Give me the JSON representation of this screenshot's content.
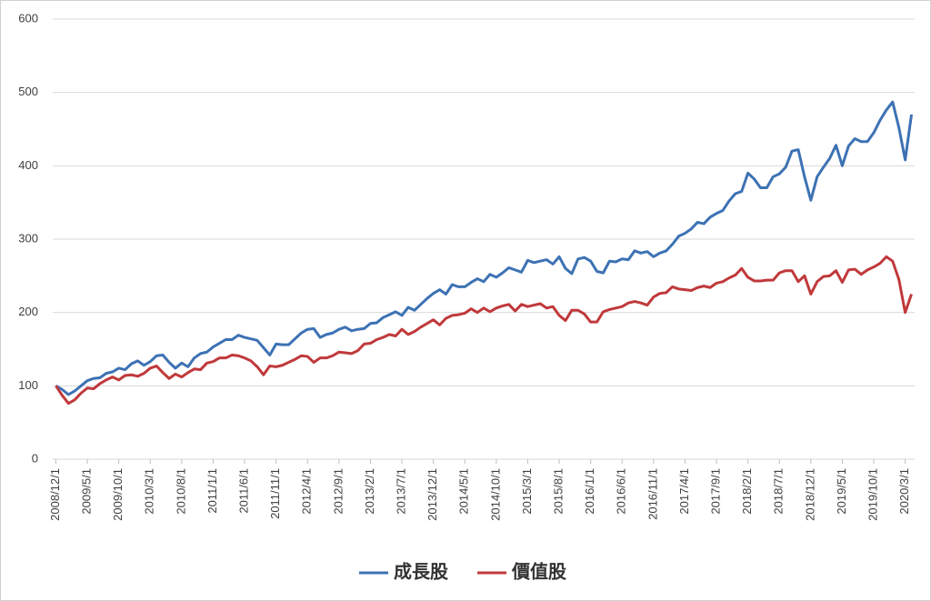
{
  "chart_data": {
    "type": "line",
    "categories": [
      "2008/12/1",
      null,
      null,
      null,
      null,
      "2009/5/1",
      null,
      null,
      null,
      null,
      "2009/10/1",
      null,
      null,
      null,
      null,
      "2010/3/1",
      null,
      null,
      null,
      null,
      "2010/8/1",
      null,
      null,
      null,
      null,
      "2011/1/1",
      null,
      null,
      null,
      null,
      "2011/6/1",
      null,
      null,
      null,
      null,
      "2011/11/1",
      null,
      null,
      null,
      null,
      "2012/4/1",
      null,
      null,
      null,
      null,
      "2012/9/1",
      null,
      null,
      null,
      null,
      "2013/2/1",
      null,
      null,
      null,
      null,
      "2013/7/1",
      null,
      null,
      null,
      null,
      "2013/12/1",
      null,
      null,
      null,
      null,
      "2014/5/1",
      null,
      null,
      null,
      null,
      "2014/10/1",
      null,
      null,
      null,
      null,
      "2015/3/1",
      null,
      null,
      null,
      null,
      "2015/8/1",
      null,
      null,
      null,
      null,
      "2016/1/1",
      null,
      null,
      null,
      null,
      "2016/6/1",
      null,
      null,
      null,
      null,
      "2016/11/1",
      null,
      null,
      null,
      null,
      "2017/4/1",
      null,
      null,
      null,
      null,
      "2017/9/1",
      null,
      null,
      null,
      null,
      "2018/2/1",
      null,
      null,
      null,
      null,
      "2018/7/1",
      null,
      null,
      null,
      null,
      "2018/12/1",
      null,
      null,
      null,
      null,
      "2019/5/1",
      null,
      null,
      null,
      null,
      "2019/10/1",
      null,
      null,
      null,
      null,
      "2020/3/1",
      null
    ],
    "series": [
      {
        "name": "成長股",
        "color": "#3d72b4",
        "values": [
          100,
          95,
          88,
          93,
          100,
          107,
          110,
          111,
          117,
          119,
          124,
          122,
          130,
          134,
          128,
          133,
          141,
          142,
          132,
          124,
          131,
          126,
          138,
          144,
          146,
          153,
          158,
          163,
          163,
          169,
          166,
          164,
          162,
          152,
          142,
          157,
          156,
          156,
          164,
          172,
          177,
          178,
          166,
          170,
          172,
          177,
          180,
          175,
          177,
          178,
          185,
          186,
          193,
          197,
          201,
          196,
          207,
          203,
          211,
          219,
          226,
          231,
          225,
          238,
          235,
          235,
          241,
          246,
          242,
          252,
          248,
          254,
          261,
          258,
          255,
          271,
          268,
          270,
          272,
          266,
          276,
          260,
          253,
          273,
          275,
          270,
          256,
          254,
          270,
          269,
          273,
          272,
          284,
          281,
          283,
          276,
          281,
          284,
          293,
          304,
          308,
          314,
          323,
          321,
          330,
          335,
          339,
          352,
          362,
          365,
          390,
          382,
          370,
          370,
          385,
          389,
          398,
          420,
          422,
          385,
          353,
          385,
          398,
          410,
          428,
          400,
          427,
          437,
          433,
          433,
          445,
          462,
          476,
          487,
          452,
          408,
          470
        ]
      },
      {
        "name": "價值股",
        "color": "#c0393b",
        "values": [
          100,
          87,
          76,
          81,
          90,
          97,
          96,
          103,
          108,
          112,
          108,
          114,
          115,
          113,
          117,
          124,
          127,
          118,
          110,
          116,
          112,
          118,
          123,
          122,
          131,
          133,
          138,
          138,
          142,
          141,
          138,
          134,
          126,
          115,
          127,
          126,
          128,
          132,
          136,
          141,
          140,
          132,
          138,
          138,
          141,
          146,
          145,
          144,
          148,
          157,
          158,
          163,
          166,
          170,
          168,
          177,
          170,
          174,
          180,
          185,
          190,
          183,
          192,
          196,
          197,
          199,
          205,
          200,
          206,
          201,
          206,
          209,
          211,
          202,
          211,
          208,
          210,
          212,
          206,
          208,
          196,
          189,
          203,
          203,
          198,
          187,
          187,
          201,
          204,
          206,
          208,
          213,
          215,
          213,
          210,
          221,
          226,
          227,
          235,
          232,
          231,
          230,
          234,
          236,
          234,
          240,
          242,
          247,
          251,
          260,
          248,
          243,
          243,
          244,
          244,
          254,
          257,
          257,
          242,
          250,
          225,
          242,
          249,
          250,
          257,
          241,
          258,
          259,
          252,
          258,
          262,
          267,
          276,
          270,
          245,
          200,
          225
        ]
      }
    ],
    "ylim": [
      0,
      600
    ],
    "yticks": [
      0,
      100,
      200,
      300,
      400,
      500,
      600
    ],
    "grid": true
  }
}
